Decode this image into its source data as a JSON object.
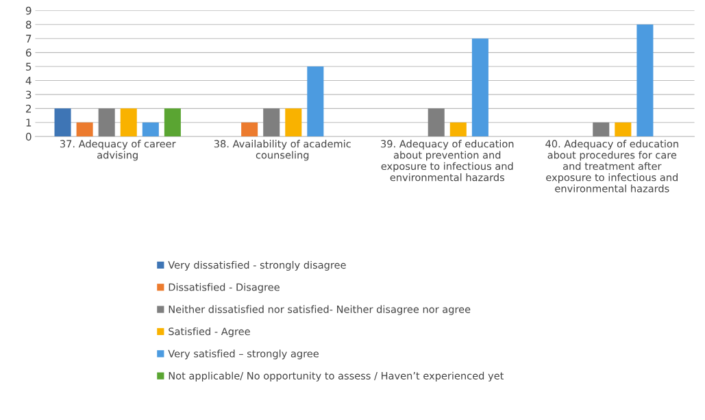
{
  "chart_data": {
    "type": "bar",
    "categories": [
      "37. Adequacy of career\nadvising",
      "38. Availability of academic\ncounseling",
      "39. Adequacy of education\nabout prevention and\nexposure to infectious and\nenvironmental hazards",
      "40. Adequacy of education\nabout procedures for care\nand treatment after\nexposure to infectious and\nenvironmental hazards"
    ],
    "series": [
      {
        "name": "Very dissatisfied - strongly disagree",
        "color": "#3e75b5",
        "values": [
          2,
          0,
          0,
          0
        ]
      },
      {
        "name": "Dissatisfied - Disagree",
        "color": "#ec7b2e",
        "values": [
          1,
          1,
          0,
          0
        ]
      },
      {
        "name": "Neither dissatisfied nor satisfied- Neither disagree nor agree",
        "color": "#7f7f7f",
        "values": [
          2,
          2,
          2,
          1
        ]
      },
      {
        "name": "Satisfied - Agree",
        "color": "#f9b200",
        "values": [
          2,
          2,
          1,
          1
        ]
      },
      {
        "name": "Very satisfied – strongly agree",
        "color": "#4c9be0",
        "values": [
          1,
          5,
          7,
          8
        ]
      },
      {
        "name": "Not applicable/ No opportunity to assess / Haven’t experienced yet",
        "color": "#5aa532",
        "values": [
          2,
          0,
          0,
          0
        ]
      }
    ],
    "ylim": [
      0,
      9
    ],
    "yticks": [
      0,
      1,
      2,
      3,
      4,
      5,
      6,
      7,
      8,
      9
    ],
    "grid": "y",
    "legend": "bottom"
  }
}
